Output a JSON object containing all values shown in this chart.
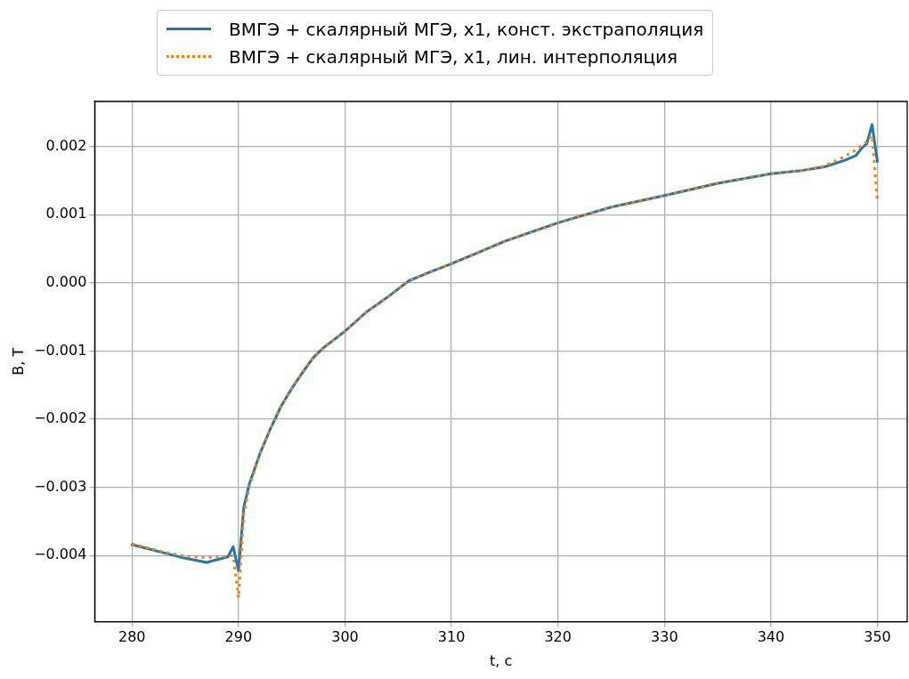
{
  "chart_data": {
    "type": "line",
    "xlabel": "t, c",
    "ylabel": "B, T",
    "legend": "top",
    "grid": true,
    "marker": "none",
    "xlim": [
      276.5,
      352.8
    ],
    "ylim": [
      -0.00497,
      0.00266
    ],
    "xticks": [
      280,
      290,
      300,
      310,
      320,
      330,
      340,
      350
    ],
    "yticks": [
      {
        "value": -0.004,
        "label": "−0.004"
      },
      {
        "value": -0.003,
        "label": "−0.003"
      },
      {
        "value": -0.002,
        "label": "−0.002"
      },
      {
        "value": -0.001,
        "label": "−0.001"
      },
      {
        "value": 0,
        "label": "0.000"
      },
      {
        "value": 0.001,
        "label": "0.001"
      },
      {
        "value": 0.002,
        "label": "0.002"
      }
    ],
    "series": [
      {
        "name": "ВМГЭ + скалярный МГЭ, x1, конст. экстраполяция",
        "color": "#1f77b4",
        "line_style": "solid",
        "x": [
          280,
          285,
          287,
          289,
          289.5,
          290,
          290.5,
          291,
          292,
          293,
          294,
          295,
          296,
          297,
          298,
          300,
          302,
          304,
          306,
          308,
          310,
          312,
          315,
          320,
          325,
          330,
          335,
          340,
          343,
          345,
          346,
          347,
          348,
          348.5,
          349,
          349.5,
          350
        ],
        "values": [
          -0.00384,
          -0.00404,
          -0.0041,
          -0.00402,
          -0.00387,
          -0.00422,
          -0.00329,
          -0.00296,
          -0.00251,
          -0.00214,
          -0.00181,
          -0.00155,
          -0.00132,
          -0.0011,
          -0.00095,
          -0.00071,
          -0.00043,
          -0.00021,
          3e-05,
          0.00016,
          0.00028,
          0.00041,
          0.00061,
          0.00088,
          0.00111,
          0.00128,
          0.00146,
          0.0016,
          0.00165,
          0.0017,
          0.00175,
          0.0018,
          0.00187,
          0.00197,
          0.00204,
          0.00232,
          0.00178
        ]
      },
      {
        "name": "ВМГЭ + скалярный МГЭ, x1, лин. интерполяция",
        "color": "#ff7f0e",
        "line_style": "dotted",
        "x": [
          280,
          283,
          285,
          287,
          289,
          289.5,
          290,
          290.5,
          291,
          292,
          293,
          294,
          295,
          296,
          297,
          298,
          300,
          302,
          304,
          306,
          308,
          310,
          312,
          315,
          320,
          325,
          330,
          335,
          340,
          343,
          345,
          346.5,
          348,
          349,
          349.5,
          350
        ],
        "values": [
          -0.00383,
          -0.00395,
          -0.00401,
          -0.00403,
          -0.00401,
          -0.004,
          -0.00462,
          -0.0034,
          -0.003,
          -0.00251,
          -0.00214,
          -0.00181,
          -0.00155,
          -0.00132,
          -0.0011,
          -0.00095,
          -0.00071,
          -0.00043,
          -0.00021,
          3e-05,
          0.00016,
          0.00028,
          0.00041,
          0.00061,
          0.00088,
          0.00111,
          0.00128,
          0.00146,
          0.0016,
          0.00165,
          0.00171,
          0.00182,
          0.00195,
          0.00207,
          0.00216,
          0.0012
        ]
      }
    ]
  }
}
